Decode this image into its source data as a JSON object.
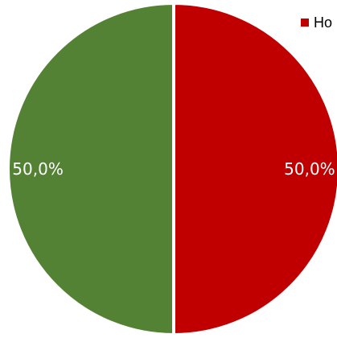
{
  "chart_data": {
    "type": "pie",
    "title": "",
    "slices": [
      {
        "label": "Ho",
        "value": 50.0,
        "display": "50,0%",
        "color": "#c00000"
      },
      {
        "label": "",
        "value": 50.0,
        "display": "50,0%",
        "color": "#548235"
      }
    ],
    "legend": {
      "placement": "top-right",
      "entries": [
        {
          "text": "Ho",
          "color": "#c00000"
        }
      ]
    },
    "start_angle_deg": 0,
    "direction": "clockwise"
  }
}
